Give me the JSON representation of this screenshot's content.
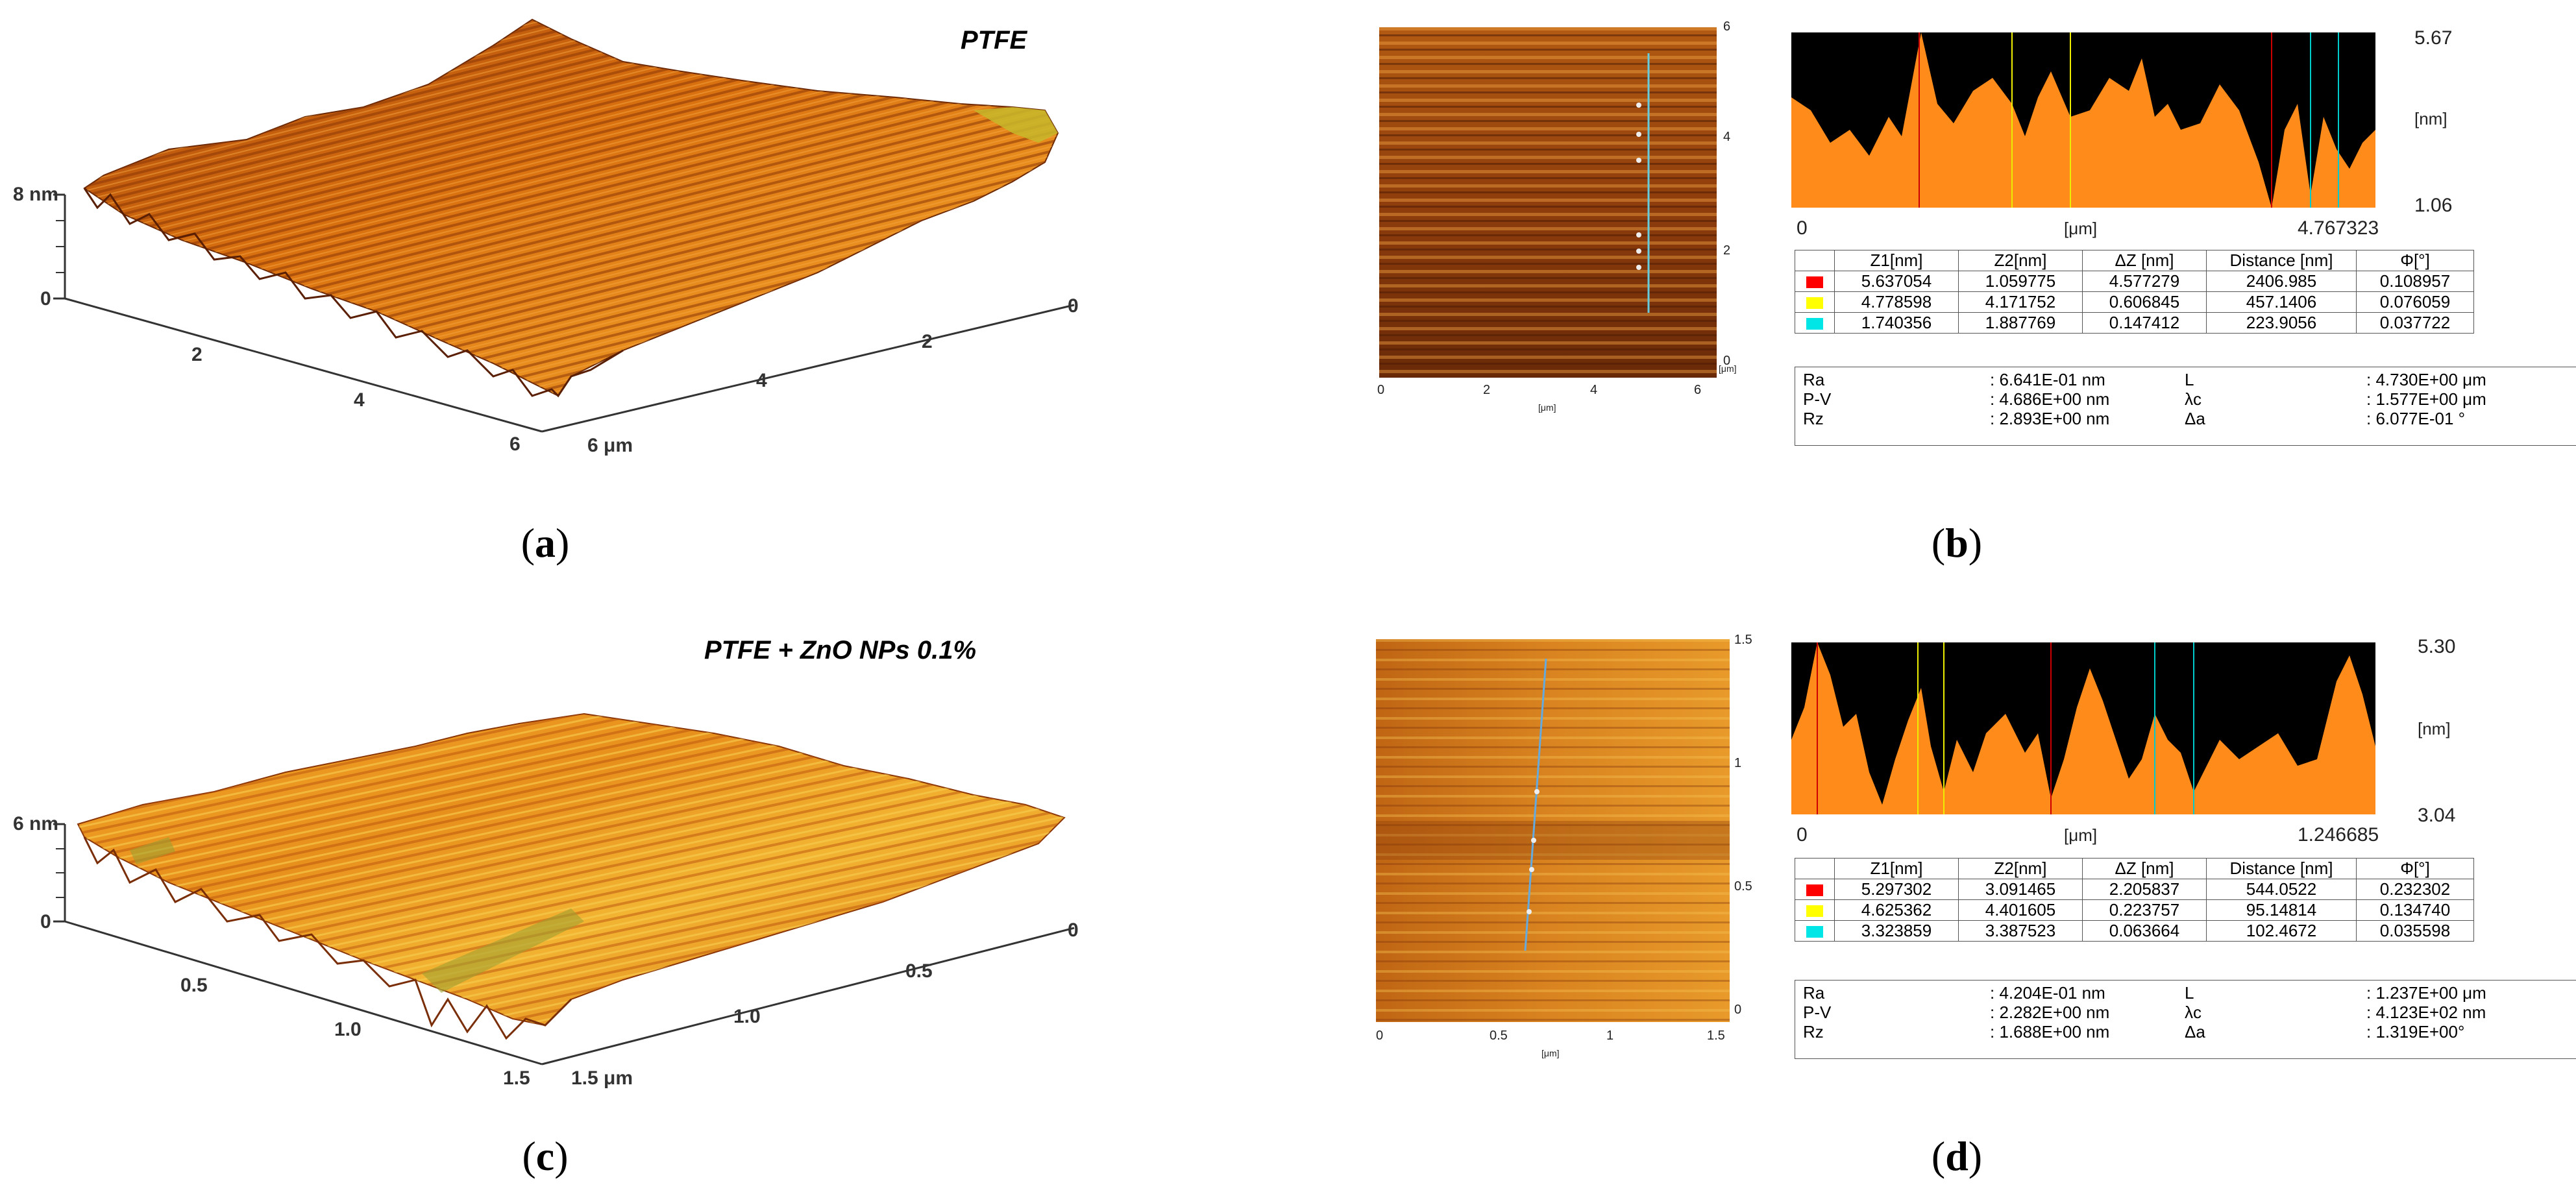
{
  "panels": {
    "a": {
      "label": "a",
      "title": "PTFE",
      "z_labels": [
        "8 nm",
        "0"
      ],
      "x_ticks": [
        "2",
        "4",
        "6"
      ],
      "y_ticks": [
        "0",
        "2",
        "4",
        "6 μm"
      ]
    },
    "b": {
      "label": "b",
      "image_y_ticks": [
        "6",
        "4",
        "2",
        "0"
      ],
      "image_x_ticks": [
        "0",
        "2",
        "4",
        "6"
      ],
      "image_unit": "[μm]",
      "image_side_unit": "[μm]",
      "profile": {
        "y_max": "5.67",
        "y_min": "1.06",
        "y_unit": "[nm]",
        "x_start": "0",
        "x_end": "4.767323",
        "x_unit": "[μm]"
      },
      "table": {
        "headers": [
          "Z1[nm]",
          "Z2[nm]",
          "ΔZ [nm]",
          "Distance [nm]",
          "Φ[°]"
        ],
        "rows": [
          {
            "color": "#ff0000",
            "cells": [
              "5.637054",
              "1.059775",
              "4.577279",
              "2406.985",
              "0.108957"
            ]
          },
          {
            "color": "#ffff00",
            "cells": [
              "4.778598",
              "4.171752",
              "0.606845",
              "457.1406",
              "0.076059"
            ]
          },
          {
            "color": "#00e5e5",
            "cells": [
              "1.740356",
              "1.887769",
              "0.147412",
              "223.9056",
              "0.037722"
            ]
          }
        ]
      },
      "stats": [
        {
          "name": "Ra",
          "value": ": 6.641E-01 nm",
          "name2": "L",
          "value2": ": 4.730E+00 μm"
        },
        {
          "name": "P-V",
          "value": ": 4.686E+00 nm",
          "name2": "λc",
          "value2": ": 1.577E+00 μm"
        },
        {
          "name": "Rz",
          "value": ": 2.893E+00 nm",
          "name2": "Δa",
          "value2": ": 6.077E-01 °"
        }
      ]
    },
    "c": {
      "label": "c",
      "title": "PTFE + ZnO NPs 0.1%",
      "z_labels": [
        "6 nm",
        "0"
      ],
      "x_ticks": [
        "0.5",
        "1.0",
        "1.5"
      ],
      "y_ticks": [
        "0",
        "0.5",
        "1.0",
        "1.5 μm"
      ]
    },
    "d": {
      "label": "d",
      "image_y_ticks": [
        "1.5",
        "1",
        "0.5",
        "0"
      ],
      "image_x_ticks": [
        "0",
        "0.5",
        "1",
        "1.5"
      ],
      "image_unit": "[μm]",
      "profile": {
        "y_max": "5.30",
        "y_min": "3.04",
        "y_unit": "[nm]",
        "x_start": "0",
        "x_end": "1.246685",
        "x_unit": "[μm]"
      },
      "table": {
        "headers": [
          "Z1[nm]",
          "Z2[nm]",
          "ΔZ [nm]",
          "Distance [nm]",
          "Φ[°]"
        ],
        "rows": [
          {
            "color": "#ff0000",
            "cells": [
              "5.297302",
              "3.091465",
              "2.205837",
              "544.0522",
              "0.232302"
            ]
          },
          {
            "color": "#ffff00",
            "cells": [
              "4.625362",
              "4.401605",
              "0.223757",
              "95.14814",
              "0.134740"
            ]
          },
          {
            "color": "#00e5e5",
            "cells": [
              "3.323859",
              "3.387523",
              "0.063664",
              "102.4672",
              "0.035598"
            ]
          }
        ]
      },
      "stats": [
        {
          "name": "Ra",
          "value": ": 4.204E-01 nm",
          "name2": "L",
          "value2": ": 1.237E+00 μm"
        },
        {
          "name": "P-V",
          "value": ": 2.282E+00 nm",
          "name2": "λc",
          "value2": ": 4.123E+02 nm"
        },
        {
          "name": "Rz",
          "value": ": 1.688E+00 nm",
          "name2": "Δa",
          "value2": ": 1.319E+00°"
        }
      ]
    }
  },
  "colors": {
    "surface_dark": "#7a2e08",
    "surface_mid": "#d9700f",
    "surface_light": "#f2b030",
    "profile_fill": "#ff8c1a",
    "profile_bg": "#000000"
  }
}
